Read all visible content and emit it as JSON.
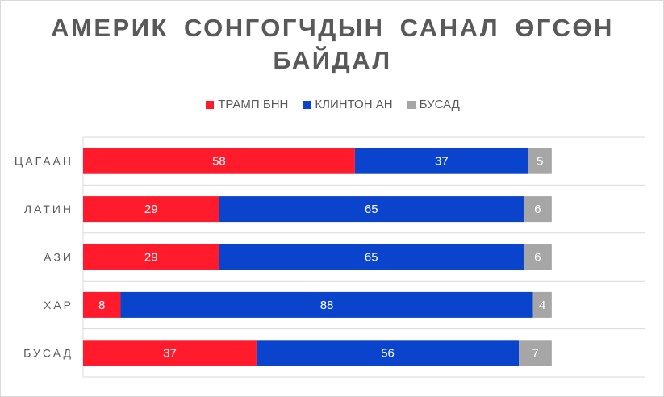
{
  "chart_data": {
    "type": "bar",
    "orientation": "horizontal",
    "stacked": true,
    "title": "АМЕРИК СОНГОГЧДЫН САНАЛ ӨГСӨН БАЙДАЛ",
    "categories": [
      "ЦАГААН",
      "ЛАТИН",
      "АЗИ",
      "ХАР",
      "БУСАД"
    ],
    "series": [
      {
        "name": "ТРАМП БНН",
        "color": "#ff1a2c",
        "values": [
          58,
          29,
          29,
          8,
          37
        ]
      },
      {
        "name": "КЛИНТОН АН",
        "color": "#0a44cc",
        "values": [
          37,
          65,
          65,
          88,
          56
        ]
      },
      {
        "name": "БУСАД",
        "color": "#a6a6a6",
        "values": [
          5,
          6,
          6,
          4,
          7
        ]
      }
    ],
    "xlim": [
      0,
      120
    ],
    "grid": true,
    "legend_position": "top"
  }
}
